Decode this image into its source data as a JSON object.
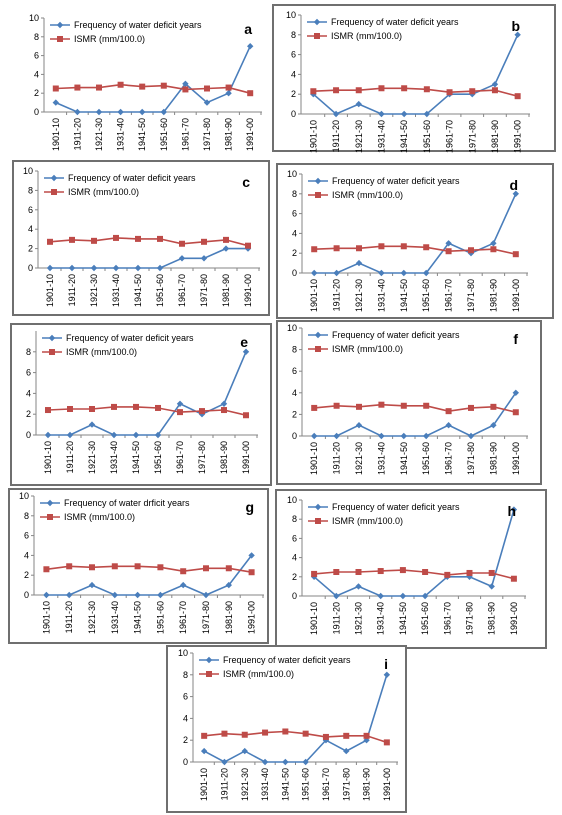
{
  "chart_data": [
    {
      "panel": "a",
      "type": "line",
      "categories": [
        "1901-10",
        "1911-20",
        "1921-30",
        "1931-40",
        "1941-50",
        "1951-60",
        "1961-70",
        "1971-80",
        "1981-90",
        "1991-00"
      ],
      "series": [
        {
          "name": "Frequency of water deficit years",
          "color": "#4a7ebb",
          "marker": "diamond",
          "values": [
            1,
            0,
            0,
            0,
            0,
            0,
            3,
            1,
            2,
            7
          ]
        },
        {
          "name": "ISMR (mm/100.0)",
          "color": "#be4b48",
          "marker": "square",
          "values": [
            2.5,
            2.6,
            2.6,
            2.9,
            2.7,
            2.8,
            2.4,
            2.5,
            2.6,
            2.0
          ]
        }
      ],
      "ylim": [
        0,
        10
      ],
      "yticks": [
        0,
        2,
        4,
        6,
        8,
        10
      ]
    },
    {
      "panel": "b",
      "type": "line",
      "categories": [
        "1901-10",
        "1911-20",
        "1921-30",
        "1931-40",
        "1941-50",
        "1951-60",
        "1961-70",
        "1971-80",
        "1981-90",
        "1991-00"
      ],
      "series": [
        {
          "name": "Frequency of water deficit years",
          "color": "#4a7ebb",
          "marker": "diamond",
          "values": [
            2,
            0,
            1,
            0,
            0,
            0,
            2,
            2,
            3,
            8
          ]
        },
        {
          "name": "ISMR (mm/100.0)",
          "color": "#be4b48",
          "marker": "square",
          "values": [
            2.3,
            2.4,
            2.4,
            2.6,
            2.6,
            2.5,
            2.2,
            2.3,
            2.4,
            1.8
          ]
        }
      ],
      "ylim": [
        0,
        10
      ],
      "yticks": [
        0,
        2,
        4,
        6,
        8,
        10
      ]
    },
    {
      "panel": "c",
      "type": "line",
      "categories": [
        "1901-10",
        "1911-20",
        "1921-30",
        "1931-40",
        "1941-50",
        "1951-60",
        "1961-70",
        "1971-80",
        "1981-90",
        "1991-00"
      ],
      "series": [
        {
          "name": "Frequency of water deficit years",
          "color": "#4a7ebb",
          "marker": "diamond",
          "values": [
            0,
            0,
            0,
            0,
            0,
            0,
            1,
            1,
            2,
            2
          ]
        },
        {
          "name": "ISMR (mm/100.0)",
          "color": "#be4b48",
          "marker": "square",
          "values": [
            2.7,
            2.9,
            2.8,
            3.1,
            3.0,
            3.0,
            2.5,
            2.7,
            2.9,
            2.3
          ]
        }
      ],
      "ylim": [
        0,
        10
      ],
      "yticks": [
        0,
        2,
        4,
        6,
        8,
        10
      ]
    },
    {
      "panel": "d",
      "type": "line",
      "categories": [
        "1901-10",
        "1911-20",
        "1921-30",
        "1931-40",
        "1941-50",
        "1951-60",
        "1961-70",
        "1971-80",
        "1981-90",
        "1991-00"
      ],
      "series": [
        {
          "name": "Frequency of water deficit years",
          "color": "#4a7ebb",
          "marker": "diamond",
          "values": [
            0,
            0,
            1,
            0,
            0,
            0,
            3,
            2,
            3,
            8
          ]
        },
        {
          "name": "ISMR (mm/100.0)",
          "color": "#be4b48",
          "marker": "square",
          "values": [
            2.4,
            2.5,
            2.5,
            2.7,
            2.7,
            2.6,
            2.2,
            2.3,
            2.4,
            1.9
          ]
        }
      ],
      "ylim": [
        0,
        10
      ],
      "yticks": [
        0,
        2,
        4,
        6,
        8,
        10
      ]
    },
    {
      "panel": "e",
      "type": "line",
      "categories": [
        "1901-10",
        "1911-20",
        "1921-30",
        "1931-40",
        "1941-50",
        "1951-60",
        "1961-70",
        "1971-80",
        "1981-90",
        "1991-00"
      ],
      "series": [
        {
          "name": "Frequency of water deficit years",
          "color": "#4a7ebb",
          "marker": "diamond",
          "values": [
            0,
            0,
            1,
            0,
            0,
            0,
            3,
            2,
            3,
            8
          ]
        },
        {
          "name": "ISMR (mm/100.0)",
          "color": "#be4b48",
          "marker": "square",
          "values": [
            2.4,
            2.5,
            2.5,
            2.7,
            2.7,
            2.6,
            2.2,
            2.3,
            2.4,
            1.9
          ]
        }
      ],
      "ylim": [
        0,
        10
      ],
      "yticks": [
        0,
        2,
        4,
        6,
        8
      ]
    },
    {
      "panel": "f",
      "type": "line",
      "categories": [
        "1901-10",
        "1911-20",
        "1921-30",
        "1931-40",
        "1941-50",
        "1951-60",
        "1961-70",
        "1971-80",
        "1981-90",
        "1991-00"
      ],
      "series": [
        {
          "name": "Frequency of water deficit years",
          "color": "#4a7ebb",
          "marker": "diamond",
          "values": [
            0,
            0,
            1,
            0,
            0,
            0,
            1,
            0,
            1,
            4
          ]
        },
        {
          "name": "ISMR (mm/100.0)",
          "color": "#be4b48",
          "marker": "square",
          "values": [
            2.6,
            2.8,
            2.7,
            2.9,
            2.8,
            2.8,
            2.3,
            2.6,
            2.7,
            2.2
          ]
        }
      ],
      "ylim": [
        0,
        10
      ],
      "yticks": [
        0,
        2,
        4,
        6,
        8,
        10
      ]
    },
    {
      "panel": "g",
      "type": "line",
      "categories": [
        "1901-10",
        "1911-20",
        "1921-30",
        "1931-40",
        "1941-50",
        "1951-60",
        "1961-70",
        "1971-80",
        "1981-90",
        "1991-00"
      ],
      "series": [
        {
          "name": "Frequency of water drficit years",
          "color": "#4a7ebb",
          "marker": "diamond",
          "values": [
            0,
            0,
            1,
            0,
            0,
            0,
            1,
            0,
            1,
            4
          ]
        },
        {
          "name": "ISMR (mm/100.0)",
          "color": "#be4b48",
          "marker": "square",
          "values": [
            2.6,
            2.9,
            2.8,
            2.9,
            2.9,
            2.8,
            2.4,
            2.7,
            2.7,
            2.3
          ]
        }
      ],
      "ylim": [
        0,
        10
      ],
      "yticks": [
        0,
        2,
        4,
        6,
        8,
        10
      ]
    },
    {
      "panel": "h",
      "type": "line",
      "categories": [
        "1901-10",
        "1911-20",
        "1921-30",
        "1931-40",
        "1941-50",
        "1951-60",
        "1961-70",
        "1971-80",
        "1981-90",
        "1991-00"
      ],
      "series": [
        {
          "name": "Frequency of water deficit years",
          "color": "#4a7ebb",
          "marker": "diamond",
          "values": [
            2,
            0,
            1,
            0,
            0,
            0,
            2,
            2,
            1,
            9
          ]
        },
        {
          "name": "ISMR (mm/100.0)",
          "color": "#be4b48",
          "marker": "square",
          "values": [
            2.3,
            2.5,
            2.5,
            2.6,
            2.7,
            2.5,
            2.2,
            2.4,
            2.4,
            1.8
          ]
        }
      ],
      "ylim": [
        0,
        10
      ],
      "yticks": [
        0,
        2,
        4,
        6,
        8,
        10
      ]
    },
    {
      "panel": "i",
      "type": "line",
      "categories": [
        "1901-10",
        "1911-20",
        "1921-30",
        "1931-40",
        "1941-50",
        "1951-60",
        "1961-70",
        "1971-80",
        "1981-90",
        "1991-00"
      ],
      "series": [
        {
          "name": "Frequency of water deficit years",
          "color": "#4a7ebb",
          "marker": "diamond",
          "values": [
            1,
            0,
            1,
            0,
            0,
            0,
            2,
            1,
            2,
            8
          ]
        },
        {
          "name": "ISMR (mm/100.0)",
          "color": "#be4b48",
          "marker": "square",
          "values": [
            2.4,
            2.6,
            2.5,
            2.7,
            2.8,
            2.6,
            2.3,
            2.4,
            2.4,
            1.8
          ]
        }
      ],
      "ylim": [
        0,
        10
      ],
      "yticks": [
        0,
        2,
        4,
        6,
        8,
        10
      ]
    }
  ]
}
